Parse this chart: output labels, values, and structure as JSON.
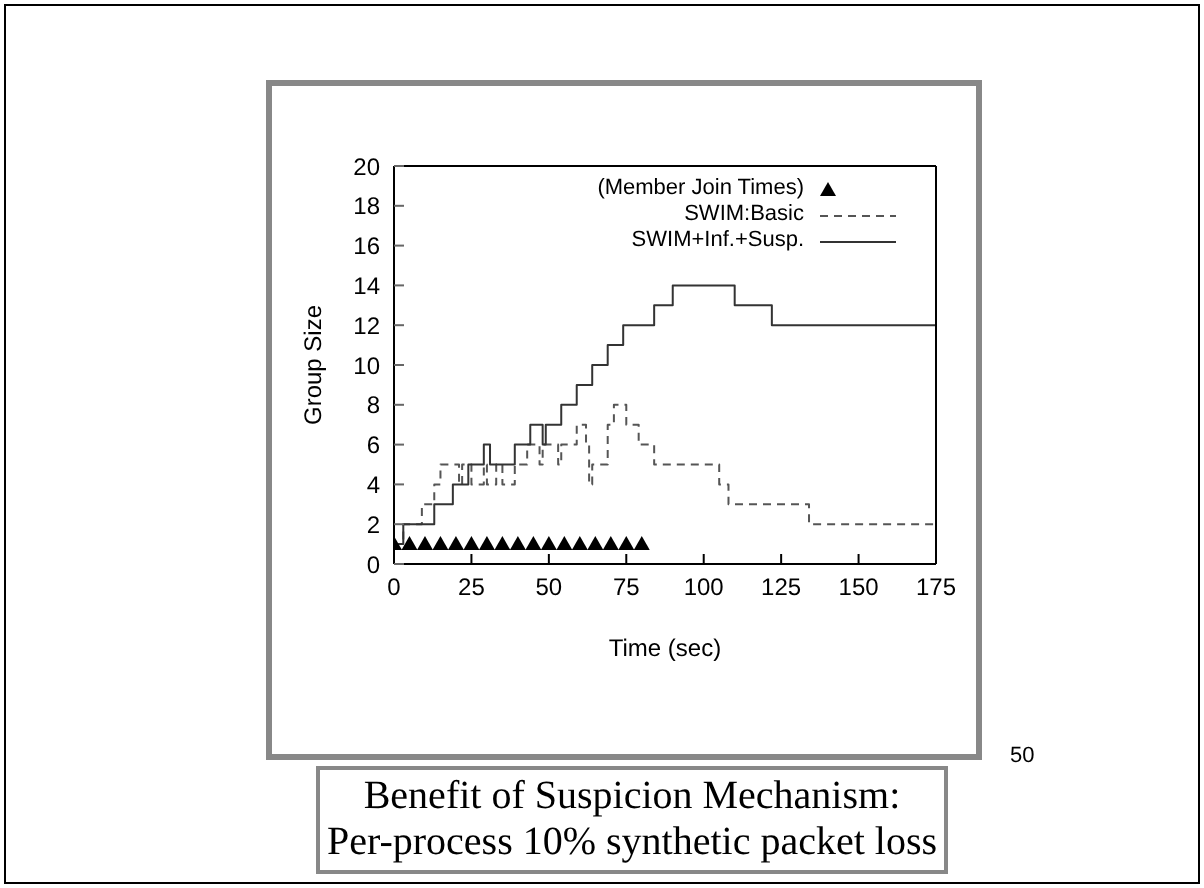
{
  "chart_data": {
    "type": "step",
    "xlabel": "Time (sec)",
    "ylabel": "Group Size",
    "xlim": [
      0,
      175
    ],
    "xticks": [
      0,
      25,
      50,
      75,
      100,
      125,
      150,
      175
    ],
    "ylim": [
      0,
      20
    ],
    "yticks": [
      0,
      2,
      4,
      6,
      8,
      10,
      12,
      14,
      16,
      18,
      20
    ],
    "legend": "top right",
    "annotations": [
      "Benefit of Suspicion Mechanism:",
      "Per-process 10% synthetic packet loss",
      "50"
    ],
    "series": [
      {
        "name": "(Member Join Times)",
        "type": "scatter",
        "marker": "triangle",
        "color": "#000000",
        "x": [
          0,
          5,
          10,
          15,
          20,
          25,
          30,
          35,
          40,
          45,
          50,
          55,
          60,
          65,
          70,
          75,
          80
        ],
        "values": [
          1,
          1,
          1,
          1,
          1,
          1,
          1,
          1,
          1,
          1,
          1,
          1,
          1,
          1,
          1,
          1,
          1
        ]
      },
      {
        "name": "SWIM:Basic",
        "line_style": "dashed",
        "color": "#555555",
        "x": [
          0,
          3,
          9,
          13,
          15,
          21,
          22,
          25,
          29,
          30,
          33,
          35,
          39,
          43,
          47,
          48,
          53,
          54,
          59,
          62,
          63,
          64,
          69,
          71,
          75,
          79,
          84,
          105,
          108,
          134,
          175
        ],
        "values": [
          1,
          2,
          3,
          4,
          5,
          4,
          5,
          4,
          5,
          4,
          5,
          4,
          5,
          6,
          5,
          6,
          5,
          6,
          7,
          6,
          4,
          5,
          7,
          8,
          7,
          6,
          5,
          4,
          3,
          2,
          2
        ]
      },
      {
        "name": "SWIM+Inf.+Susp.",
        "line_style": "solid",
        "color": "#333333",
        "x": [
          0,
          3,
          13,
          19,
          24,
          29,
          31,
          39,
          44,
          48,
          49,
          54,
          59,
          64,
          69,
          74,
          84,
          90,
          110,
          122,
          175
        ],
        "values": [
          1,
          2,
          3,
          4,
          5,
          6,
          5,
          6,
          7,
          6,
          7,
          8,
          9,
          10,
          11,
          12,
          13,
          14,
          13,
          12,
          12
        ]
      }
    ]
  }
}
